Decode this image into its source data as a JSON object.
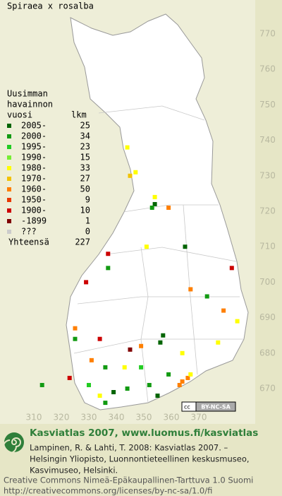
{
  "title": "Spiraea x rosalba",
  "legend": {
    "heading": [
      "Uusimman",
      "havainnon",
      "vuosi"
    ],
    "count_heading": "lkm",
    "rows": [
      {
        "label": "2005-",
        "count": 25,
        "color": "#006400"
      },
      {
        "label": "2000-",
        "count": 34,
        "color": "#129a12"
      },
      {
        "label": "1995-",
        "count": 23,
        "color": "#22cc22"
      },
      {
        "label": "1990-",
        "count": 15,
        "color": "#77ee33"
      },
      {
        "label": "1980-",
        "count": 33,
        "color": "#ffff00"
      },
      {
        "label": "1970-",
        "count": 27,
        "color": "#f2c200"
      },
      {
        "label": "1960-",
        "count": 50,
        "color": "#ff7f00"
      },
      {
        "label": "1950-",
        "count": 9,
        "color": "#e83800"
      },
      {
        "label": "1900-",
        "count": 10,
        "color": "#cc0000"
      },
      {
        "label": "-1899",
        "count": 1,
        "color": "#800000"
      },
      {
        "label": "???",
        "count": 0,
        "color": "#cccccc"
      }
    ],
    "total_label": "Yhteensä",
    "total": 227
  },
  "map": {
    "xticks": [
      310,
      320,
      330,
      340,
      350,
      360,
      370
    ],
    "yticks": [
      670,
      680,
      690,
      700,
      710,
      720,
      730,
      740,
      750,
      760,
      770
    ],
    "points": [
      {
        "e": 344,
        "n": 738,
        "period": 4
      },
      {
        "e": 345,
        "n": 730,
        "period": 5
      },
      {
        "e": 347,
        "n": 731,
        "period": 4
      },
      {
        "e": 354,
        "n": 722,
        "period": 0
      },
      {
        "e": 353,
        "n": 721,
        "period": 1
      },
      {
        "e": 359,
        "n": 721,
        "period": 6
      },
      {
        "e": 354,
        "n": 724,
        "period": 4
      },
      {
        "e": 351,
        "n": 710,
        "period": 4
      },
      {
        "e": 365,
        "n": 710,
        "period": 0
      },
      {
        "e": 337,
        "n": 708,
        "period": 8
      },
      {
        "e": 337,
        "n": 704,
        "period": 1
      },
      {
        "e": 329,
        "n": 700,
        "period": 8
      },
      {
        "e": 382,
        "n": 704,
        "period": 8
      },
      {
        "e": 367,
        "n": 698,
        "period": 6
      },
      {
        "e": 373,
        "n": 696,
        "period": 1
      },
      {
        "e": 384,
        "n": 689,
        "period": 4
      },
      {
        "e": 357,
        "n": 685,
        "period": 0
      },
      {
        "e": 356,
        "n": 683,
        "period": 0
      },
      {
        "e": 349,
        "n": 682,
        "period": 6
      },
      {
        "e": 345,
        "n": 681,
        "period": 9
      },
      {
        "e": 343,
        "n": 676,
        "period": 4
      },
      {
        "e": 336,
        "n": 676,
        "period": 1
      },
      {
        "e": 331,
        "n": 678,
        "period": 6
      },
      {
        "e": 325,
        "n": 687,
        "period": 6
      },
      {
        "e": 325,
        "n": 684,
        "period": 1
      },
      {
        "e": 334,
        "n": 684,
        "period": 8
      },
      {
        "e": 364,
        "n": 672,
        "period": 6
      },
      {
        "e": 366,
        "n": 673,
        "period": 6
      },
      {
        "e": 363,
        "n": 671,
        "period": 6
      },
      {
        "e": 367,
        "n": 674,
        "period": 4
      },
      {
        "e": 359,
        "n": 674,
        "period": 1
      },
      {
        "e": 352,
        "n": 671,
        "period": 1
      },
      {
        "e": 344,
        "n": 670,
        "period": 1
      },
      {
        "e": 339,
        "n": 669,
        "period": 0
      },
      {
        "e": 336,
        "n": 666,
        "period": 1
      },
      {
        "e": 334,
        "n": 668,
        "period": 4
      },
      {
        "e": 330,
        "n": 671,
        "period": 2
      },
      {
        "e": 323,
        "n": 673,
        "period": 8
      },
      {
        "e": 313,
        "n": 671,
        "period": 1
      },
      {
        "e": 377,
        "n": 683,
        "period": 4
      },
      {
        "e": 379,
        "n": 692,
        "period": 6
      },
      {
        "e": 364,
        "n": 680,
        "period": 4
      },
      {
        "e": 349,
        "n": 676,
        "period": 2
      },
      {
        "e": 355,
        "n": 668,
        "period": 0
      }
    ]
  },
  "cc_badge": "BY-NC-SA",
  "footer": {
    "heading": "Kasviatlas 2007, www.luomus.fi/kasviatlas",
    "citation": [
      "Lampinen, R. & Lahti, T. 2008: Kasviatlas 2007. –",
      "Helsingin Yliopisto, Luonnontieteellinen keskusmuseo,",
      "Kasvimuseo, Helsinki."
    ],
    "license": [
      "Creative Commons Nimeä-Epäkaupallinen-Tarttuva 1.0 Suomi",
      "http://creativecommons.org/licenses/by-nc-sa/1.0/fi"
    ]
  }
}
